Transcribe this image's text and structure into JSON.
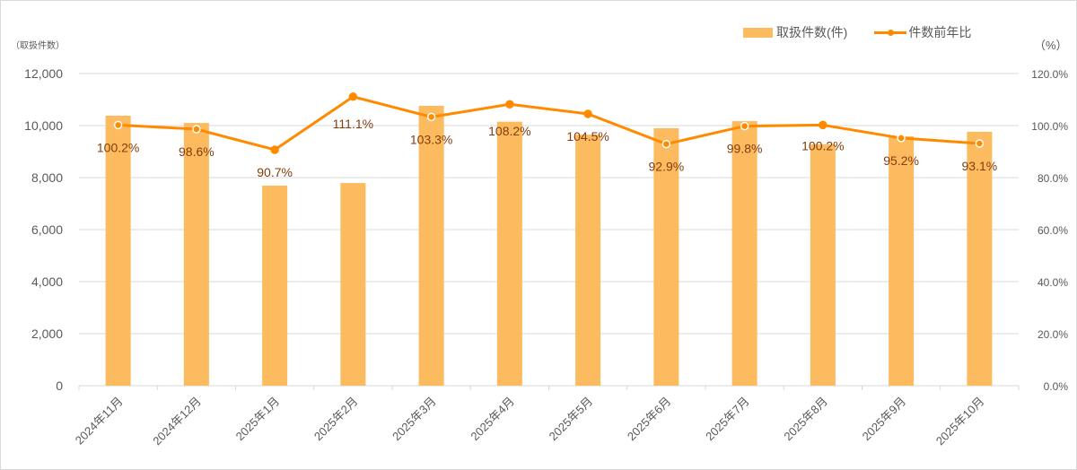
{
  "chart_data": {
    "type": "bar+line",
    "title": "",
    "categories": [
      "2024年11月",
      "2024年12月",
      "2025年1月",
      "2025年2月",
      "2025年3月",
      "2025年4月",
      "2025年5月",
      "2025年6月",
      "2025年7月",
      "2025年8月",
      "2025年9月",
      "2025年10月"
    ],
    "series": [
      {
        "name": "取扱件数(件)",
        "type": "bar",
        "axis": "left",
        "color": "#fbbb5e",
        "values": [
          10380,
          10100,
          7690,
          7790,
          10760,
          10150,
          9650,
          9900,
          10170,
          9280,
          9590,
          9760
        ]
      },
      {
        "name": "件数前年比",
        "type": "line",
        "axis": "right",
        "color": "#ff8a00",
        "values": [
          100.2,
          98.6,
          90.7,
          111.1,
          103.3,
          108.2,
          104.5,
          92.9,
          99.8,
          100.2,
          95.2,
          93.1
        ],
        "labels": [
          "100.2%",
          "98.6%",
          "90.7%",
          "111.1%",
          "103.3%",
          "108.2%",
          "104.5%",
          "92.9%",
          "99.8%",
          "100.2%",
          "95.2%",
          "93.1%"
        ]
      }
    ],
    "ylabel": "（取扱件数）",
    "y2label": "（%）",
    "ylim": [
      0,
      12000
    ],
    "y2lim": [
      0,
      120
    ],
    "yticks": [
      "0",
      "2,000",
      "4,000",
      "6,000",
      "8,000",
      "10,000",
      "12,000"
    ],
    "y2ticks": [
      "0.0%",
      "20.0%",
      "40.0%",
      "60.0%",
      "80.0%",
      "100.0%",
      "120.0%"
    ],
    "grid": true,
    "legend_position": "top-right"
  },
  "legend": {
    "bar_label": "取扱件数(件)",
    "line_label": "件数前年比"
  },
  "axis": {
    "left_title": "（取扱件数）",
    "right_title": "（%）"
  }
}
